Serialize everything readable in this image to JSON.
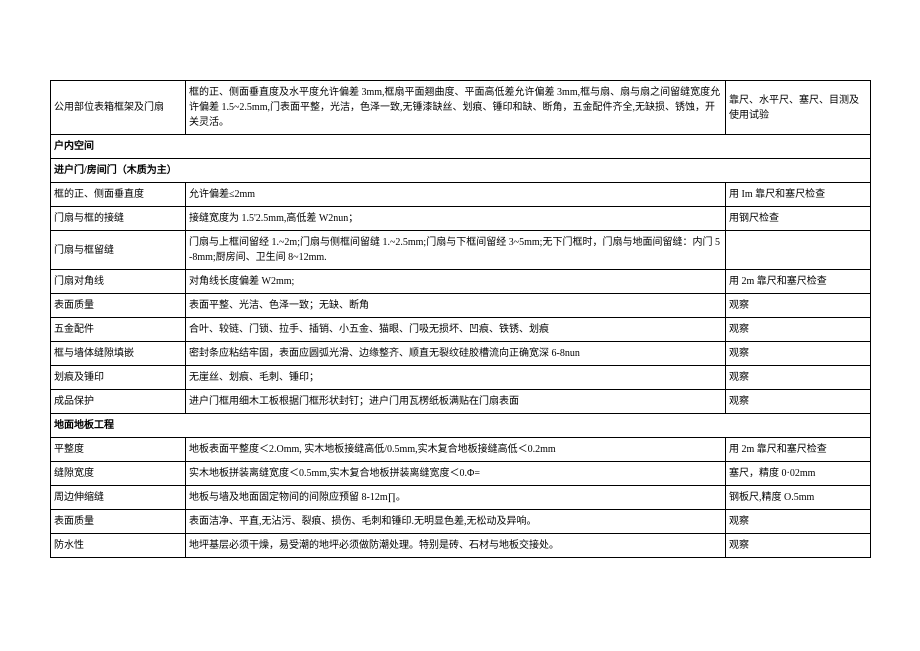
{
  "rows": [
    {
      "c1": "公用部位表箱框架及门扇",
      "c2": "框的正、侧面垂直度及水平度允许偏差 3mm,框扇平面翘曲度、平面高低差允许偏差 3mm,框与扇、扇与扇之间留缝宽度允许偏差 1.5~2.5mm,门表面平整，光洁，色泽一致,无锤漆缺丝、划痕、锤印和缺、断角，五金配件齐全,无缺损、锈蚀，开关灵活。",
      "c3": "靠尺、水平尺、塞尺、目测及使用试验"
    },
    {
      "section": true,
      "c1": "户内空间",
      "c2": "",
      "c3": ""
    },
    {
      "section": true,
      "c1": "进户门/房间门（木质为主）",
      "c2": "",
      "c3": ""
    },
    {
      "c1": "框的正、侧面垂直度",
      "c2": "允许偏差≤2mm",
      "c3": "用 Im 靠尺和塞尺检查"
    },
    {
      "c1": "门扇与框的接缝",
      "c2": "接缝宽度为 1.5'2.5mm,高低差 W2nun；",
      "c3": "用钢尺检查"
    },
    {
      "c1": "门扇与框留缝",
      "c2": "门扇与上框间留经 1.~2m;门扇与侧框间留缝 1.~2.5mm;门扇与下框间留经 3~5mm;无下门框时，门扇与地面间留缝：内门 5-8mm;厨房间、卫生间 8~12mm.",
      "c3": ""
    },
    {
      "c1": "门扇对角线",
      "c2": "对角线长度偏差 W2mm;",
      "c3": "用 2m 靠尺和塞尺检查"
    },
    {
      "c1": "表面质量",
      "c2": "表面平整、光洁、色泽一致；无缺、断角",
      "c3": "观察"
    },
    {
      "c1": "五金配件",
      "c2": "合叶、较链、门锁、拉手、插销、小五金、猫眼、门吸无损坏、凹痕、铁锈、划痕",
      "c3": "观察"
    },
    {
      "c1": "框与墙体缝隙填嵌",
      "c2": "密封条应粘结牢固，表面应圆弧光滑、边缘整齐、顺直无裂纹硅胶槽流向正确宽深 6-8nun",
      "c3": "观察"
    },
    {
      "c1": "划痕及锤印",
      "c2": "无崖丝、划痕、毛刺、锤印；",
      "c3": "观察"
    },
    {
      "c1": "成品保护",
      "c2": "进户门框用细木工板根据门框形状封钉；进户门用瓦楞纸板满贴在门扇表面",
      "c3": "观察"
    },
    {
      "section": true,
      "c1": "地面地板工程",
      "c2": "",
      "c3": ""
    },
    {
      "c1": "平整度",
      "c2": "地板表面平整度＜2.Omm, 实木地板接缝高低/0.5mm,实木复合地板接缝高低＜0.2mm",
      "c3": "用 2m 靠尺和塞尺检查"
    },
    {
      "c1": "缝隙宽度",
      "c2": "实木地板拼装离缝宽度＜0.5mm,实木复合地板拼装离缝宽度＜0.Φ=",
      "c3": "塞尺，精度 0·02mm"
    },
    {
      "c1": "周边伸缩缝",
      "c2": "地板与墙及地面固定物间的间隙应预留 8-12m∏。",
      "c3": "钢板尺,精度 O.5mm"
    },
    {
      "c1": "表面质量",
      "c2": "表面洁净、平直,无沾污、裂痕、损伤、毛刺和锤印.无明显色差,无松动及异响。",
      "c3": "观察"
    },
    {
      "c1": "防水性",
      "c2": "地坪基层必须干燥，易受潮的地坪必须做防潮处理。特别是砖、石材与地板交接处。",
      "c3": "观察"
    }
  ]
}
